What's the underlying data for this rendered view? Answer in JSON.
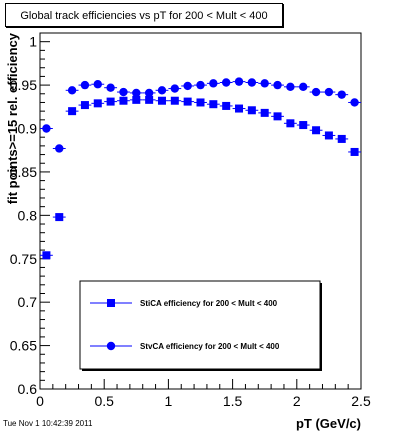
{
  "title": "Global track efficiencies vs pT for 200 < Mult < 400",
  "timestamp": "Tue Nov  1 10:42:39 2011",
  "chart_data": {
    "type": "scatter",
    "xlabel": "pT (GeV/c)",
    "ylabel": "fit points>=15 rel. efficiency",
    "xlim": [
      0,
      2.5
    ],
    "ylim": [
      0.6,
      1.01
    ],
    "x_ticks": [
      "0",
      "0.5",
      "1",
      "1.5",
      "2",
      "2.5"
    ],
    "y_ticks": [
      "0.6",
      "0.65",
      "0.7",
      "0.75",
      "0.8",
      "0.85",
      "0.9",
      "0.95",
      "1"
    ],
    "x_tick_values": [
      0,
      0.5,
      1,
      1.5,
      2,
      2.5
    ],
    "y_tick_values": [
      0.6,
      0.65,
      0.7,
      0.75,
      0.8,
      0.85,
      0.9,
      0.95,
      1.0
    ],
    "grid": false,
    "legend_position": "bottom-center",
    "series": [
      {
        "name": "StiCA efficiency  for 200 < Mult < 400",
        "marker": "square",
        "color": "#0000ff",
        "x": [
          0.05,
          0.15,
          0.25,
          0.35,
          0.45,
          0.55,
          0.65,
          0.75,
          0.85,
          0.95,
          1.05,
          1.15,
          1.25,
          1.35,
          1.45,
          1.55,
          1.65,
          1.75,
          1.85,
          1.95,
          2.05,
          2.15,
          2.25,
          2.35,
          2.45
        ],
        "y": [
          0.754,
          0.798,
          0.92,
          0.927,
          0.929,
          0.931,
          0.932,
          0.933,
          0.933,
          0.932,
          0.932,
          0.931,
          0.93,
          0.928,
          0.926,
          0.923,
          0.921,
          0.918,
          0.914,
          0.906,
          0.904,
          0.898,
          0.892,
          0.888,
          0.873
        ]
      },
      {
        "name": "StvCA efficiency  for 200 < Mult < 400",
        "marker": "circle",
        "color": "#0000ff",
        "x": [
          0.05,
          0.15,
          0.25,
          0.35,
          0.45,
          0.55,
          0.65,
          0.75,
          0.85,
          0.95,
          1.05,
          1.15,
          1.25,
          1.35,
          1.45,
          1.55,
          1.65,
          1.75,
          1.85,
          1.95,
          2.05,
          2.15,
          2.25,
          2.35,
          2.45
        ],
        "y": [
          0.9,
          0.877,
          0.944,
          0.95,
          0.951,
          0.947,
          0.942,
          0.941,
          0.941,
          0.944,
          0.946,
          0.949,
          0.95,
          0.952,
          0.953,
          0.954,
          0.953,
          0.952,
          0.95,
          0.948,
          0.948,
          0.942,
          0.942,
          0.939,
          0.93
        ]
      }
    ]
  }
}
